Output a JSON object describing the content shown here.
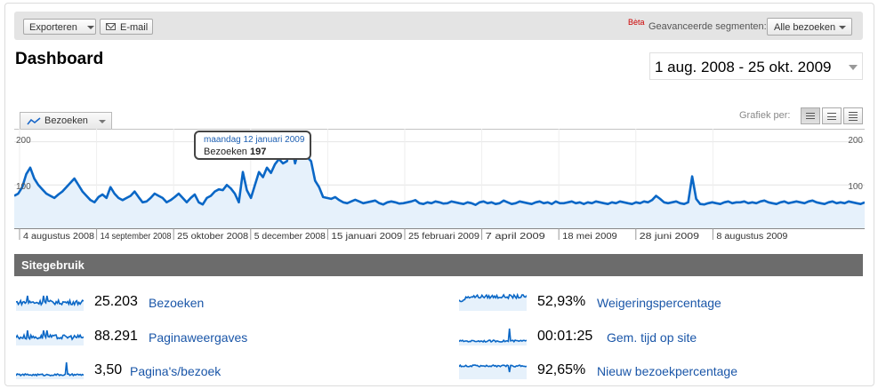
{
  "toolbar": {
    "export_label": "Exporteren",
    "email_label": "E-mail",
    "beta_label": "Bèta",
    "segments_label": "Geavanceerde segmenten:",
    "segment_value": "Alle bezoeken"
  },
  "page": {
    "title": "Dashboard",
    "date_range": "1 aug. 2008 - 25 okt. 2009"
  },
  "graph": {
    "metric_label": "Bezoeken",
    "graph_by_label": "Grafiek per:",
    "tooltip_date": "maandag 12 januari 2009",
    "tooltip_metric": "Bezoeken",
    "tooltip_value": "197",
    "y_tick_200": "200",
    "y_tick_100": "100"
  },
  "chart_data": {
    "type": "area",
    "title": "",
    "x_ticks": [
      "4 augustus 2008",
      "14 september 2008",
      "25 oktober 2008",
      "5 december 2008",
      "15 januari 2009",
      "25 februari 2009",
      "7 april 2009",
      "18 mei 2009",
      "28 juni 2009",
      "8 augustus 2009"
    ],
    "ylim": [
      0,
      200
    ],
    "y_ticks": [
      100,
      200
    ],
    "series": [
      {
        "values": [
          75,
          80,
          95,
          125,
          140,
          115,
          100,
          90,
          80,
          75,
          70,
          78,
          85,
          95,
          105,
          115,
          100,
          85,
          75,
          65,
          60,
          72,
          78,
          70,
          95,
          80,
          70,
          65,
          70,
          75,
          85,
          72,
          60,
          62,
          70,
          80,
          75,
          70,
          60,
          65,
          72,
          80,
          70,
          60,
          70,
          78,
          60,
          55,
          70,
          75,
          85,
          90,
          88,
          100,
          92,
          80,
          60,
          130,
          88,
          70,
          100,
          130,
          118,
          140,
          128,
          148,
          160,
          150,
          155,
          197,
          150,
          185,
          185,
          165,
          155,
          110,
          95,
          72,
          70,
          68,
          72,
          65,
          60,
          58,
          62,
          66,
          62,
          58,
          60,
          62,
          64,
          58,
          55,
          60,
          62,
          60,
          57,
          58,
          60,
          62,
          65,
          58,
          56,
          60,
          58,
          62,
          60,
          57,
          58,
          62,
          60,
          58,
          56,
          60,
          58,
          54,
          60,
          62,
          58,
          60,
          56,
          58,
          64,
          60,
          56,
          58,
          62,
          60,
          58,
          56,
          60,
          62,
          58,
          60,
          56,
          62,
          58,
          58,
          60,
          62,
          58,
          60,
          56,
          60,
          58,
          62,
          60,
          58,
          56,
          60,
          58,
          62,
          60,
          58,
          56,
          60,
          58,
          62,
          60,
          65,
          75,
          68,
          60,
          58,
          60,
          62,
          58,
          56,
          60,
          120,
          68,
          56,
          55,
          58,
          60,
          58,
          56,
          60,
          62,
          58,
          60,
          60,
          62,
          58,
          60,
          58,
          62,
          64,
          60,
          58,
          56,
          60,
          62,
          58,
          60,
          62,
          60,
          58,
          62,
          64,
          60,
          58,
          56,
          60,
          62,
          58,
          60,
          58,
          62,
          60,
          58,
          56,
          60
        ]
      }
    ]
  },
  "site_usage": {
    "header": "Sitegebruik",
    "metrics": [
      {
        "value": "25.203",
        "label": "Bezoeken"
      },
      {
        "value": "52,93%",
        "label": "Weigeringspercentage"
      },
      {
        "value": "88.291",
        "label": "Paginaweergaves"
      },
      {
        "value": "00:01:25",
        "label": "Gem. tijd op site"
      },
      {
        "value": "3,50",
        "label": "Pagina's/bezoek"
      },
      {
        "value": "92,65%",
        "label": "Nieuw bezoekpercentage"
      }
    ]
  },
  "colors": {
    "line": "#0a67c6",
    "fill": "#e6f1fb",
    "link": "#1a56a8",
    "bar": "#6c6c6c"
  }
}
